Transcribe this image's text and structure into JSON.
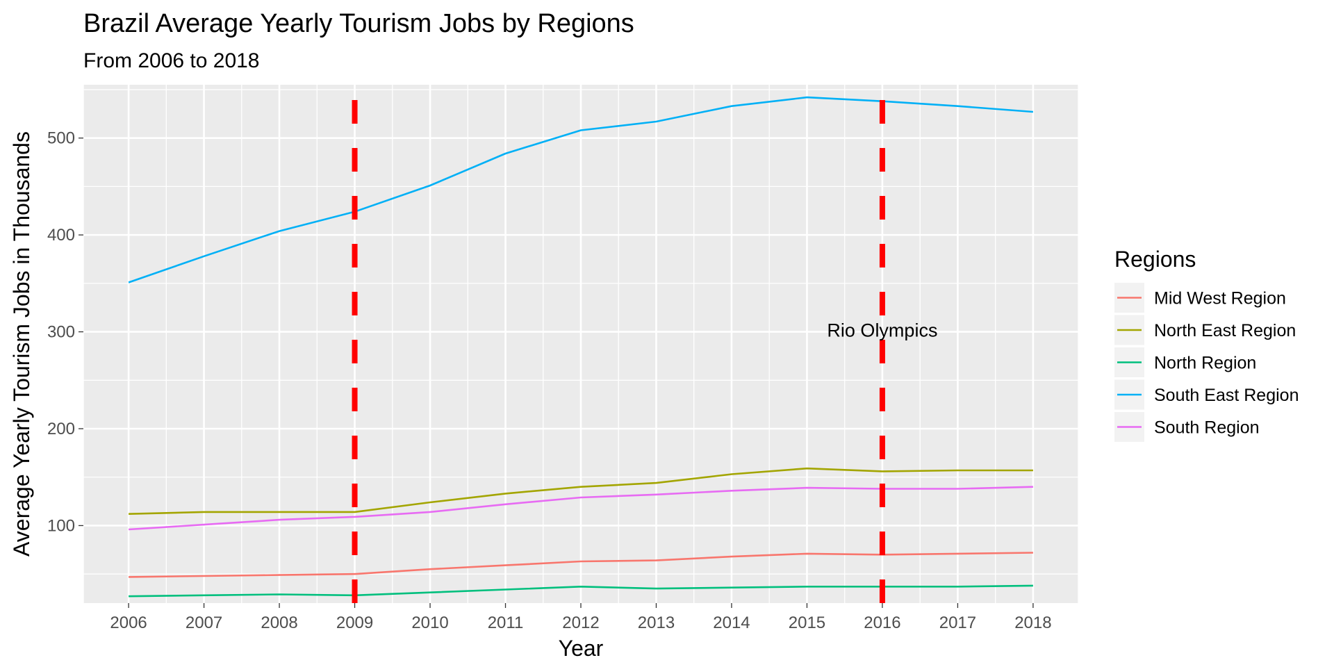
{
  "chart_data": {
    "type": "line",
    "title": "Brazil Average Yearly Tourism Jobs by Regions",
    "subtitle": "From 2006 to 2018",
    "xlabel": "Year",
    "ylabel": "Average Yearly Tourism Jobs in Thousands",
    "x": [
      2006,
      2007,
      2008,
      2009,
      2010,
      2011,
      2012,
      2013,
      2014,
      2015,
      2016,
      2017,
      2018
    ],
    "xlim": [
      2005.4,
      2018.6
    ],
    "ylim": [
      20,
      555
    ],
    "yticks": [
      100,
      200,
      300,
      400,
      500
    ],
    "grid": true,
    "legend": {
      "title": "Regions",
      "position": "right"
    },
    "series": [
      {
        "name": "Mid West Region",
        "color": "#F8766D",
        "values": [
          47,
          48,
          49,
          50,
          55,
          59,
          63,
          64,
          68,
          71,
          70,
          71,
          72
        ]
      },
      {
        "name": "North East Region",
        "color": "#A3A500",
        "values": [
          112,
          114,
          114,
          114,
          124,
          133,
          140,
          144,
          153,
          159,
          156,
          157,
          157
        ]
      },
      {
        "name": "North Region",
        "color": "#00BF7D",
        "values": [
          27,
          28,
          29,
          28,
          31,
          34,
          37,
          35,
          36,
          37,
          37,
          37,
          38
        ]
      },
      {
        "name": "South East Region",
        "color": "#00B0F6",
        "values": [
          351,
          378,
          404,
          424,
          451,
          484,
          508,
          517,
          533,
          542,
          538,
          533,
          527
        ]
      },
      {
        "name": "South Region",
        "color": "#E76BF3",
        "values": [
          96,
          101,
          106,
          109,
          114,
          122,
          129,
          132,
          136,
          139,
          138,
          138,
          140
        ]
      }
    ],
    "vlines": [
      {
        "x": 2009,
        "color": "#FF0000",
        "style": "dashed"
      },
      {
        "x": 2016,
        "color": "#FF0000",
        "style": "dashed"
      }
    ],
    "annotations": [
      {
        "text": "Rio Olympics",
        "x": 2016,
        "y": 295
      }
    ]
  }
}
